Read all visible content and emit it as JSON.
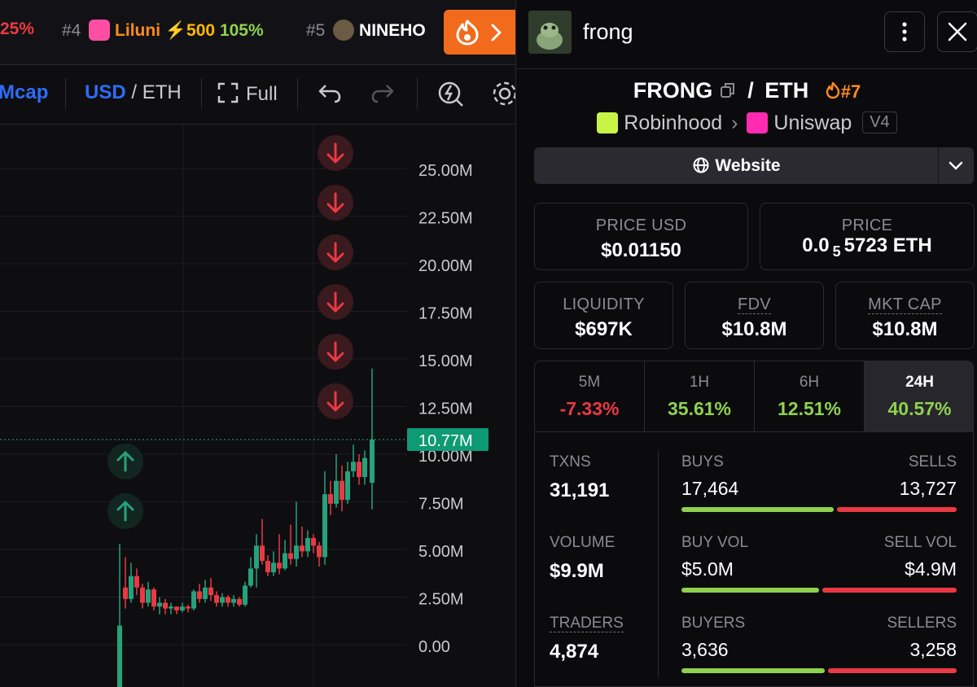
{
  "ticker": {
    "items": [
      {
        "pct": "25%"
      },
      {
        "rank": "#4",
        "name": "Liluni",
        "boost": "500",
        "pct": "105%"
      },
      {
        "rank": "#5",
        "name": "NINEHO"
      }
    ]
  },
  "toolbar": {
    "mcap": "Mcap",
    "usd": "USD",
    "slash": "/",
    "eth": "ETH",
    "full": "Full"
  },
  "chart_data": {
    "type": "candlestick",
    "y_ticks": [
      "25.00M",
      "22.50M",
      "20.00M",
      "17.50M",
      "15.00M",
      "12.50M",
      "10.00M",
      "7.50M",
      "5.00M",
      "2.50M",
      "0.00"
    ],
    "ylim": [
      0,
      25000000
    ],
    "current_label": "10.77M",
    "current_value": 10770000,
    "colors": {
      "up": "#26a17b",
      "down": "#ea3943",
      "label_bg": "#0e9a74"
    },
    "sell_markers": 6,
    "buy_markers": 2
  },
  "token": {
    "name": "frong",
    "base": "FRONG",
    "quote": "ETH",
    "slash": "/",
    "rank": "#7",
    "chain": "Robinhood",
    "dex": "Uniswap",
    "version": "V4",
    "website_label": "Website"
  },
  "metrics": {
    "price_usd": {
      "label": "PRICE USD",
      "value": "$0.01150"
    },
    "price": {
      "label": "PRICE",
      "value_prefix": "0.0",
      "subscript": "5",
      "value_rest": "5723 ETH"
    },
    "liquidity": {
      "label": "LIQUIDITY",
      "value": "$697K"
    },
    "fdv": {
      "label": "FDV",
      "value": "$10.8M"
    },
    "mkt_cap": {
      "label": "MKT CAP",
      "value": "$10.8M"
    }
  },
  "timeframes": [
    {
      "name": "5M",
      "pct": "-7.33%",
      "color": "#ea3943"
    },
    {
      "name": "1H",
      "pct": "35.61%",
      "color": "#8fd14f"
    },
    {
      "name": "6H",
      "pct": "12.51%",
      "color": "#8fd14f"
    },
    {
      "name": "24H",
      "pct": "40.57%",
      "color": "#8fd14f",
      "active": true
    }
  ],
  "stats": {
    "txns": {
      "label": "TXNS",
      "value": "31,191"
    },
    "volume": {
      "label": "VOLUME",
      "value": "$9.9M"
    },
    "traders": {
      "label": "TRADERS",
      "value": "4,874"
    },
    "buys": {
      "label": "BUYS",
      "value": "17,464",
      "ratio": 0.56
    },
    "sells": {
      "label": "SELLS",
      "value": "13,727"
    },
    "buy_vol": {
      "label": "BUY VOL",
      "value": "$5.0M",
      "ratio": 0.505
    },
    "sell_vol": {
      "label": "SELL VOL",
      "value": "$4.9M"
    },
    "buyers": {
      "label": "BUYERS",
      "value": "3,636",
      "ratio": 0.527
    },
    "sellers": {
      "label": "SELLERS",
      "value": "3,258"
    }
  }
}
